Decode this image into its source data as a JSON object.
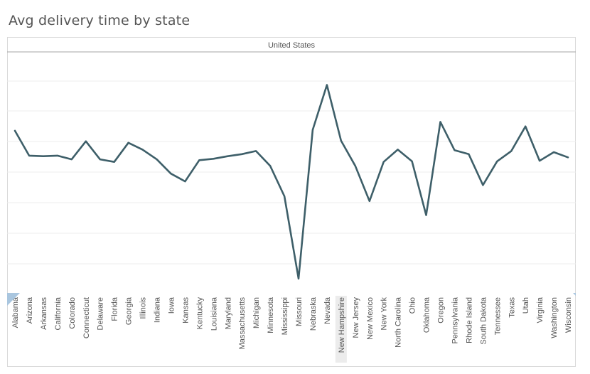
{
  "page": {
    "title": "Avg delivery time by state"
  },
  "chart_data": {
    "type": "line",
    "title": "Avg delivery time by state",
    "header": "United States",
    "xlabel": "",
    "ylabel": "",
    "grid": true,
    "y_axis_visible": false,
    "highlighted_category": "New Hampshire",
    "line_color": "#3e5f69",
    "categories": [
      "Alabama",
      "Arizona",
      "Arkansas",
      "California",
      "Colorado",
      "Connecticut",
      "Delaware",
      "Florida",
      "Georgia",
      "Illinois",
      "Indiana",
      "Iowa",
      "Kansas",
      "Kentucky",
      "Louisiana",
      "Maryland",
      "Massachusetts",
      "Michigan",
      "Minnesota",
      "Mississippi",
      "Missouri",
      "Nebraska",
      "Nevada",
      "New Hampshire",
      "New Jersey",
      "New Mexico",
      "New York",
      "North Carolina",
      "Ohio",
      "Oklahoma",
      "Oregon",
      "Pennsylvania",
      "Rhode Island",
      "South Dakota",
      "Tennessee",
      "Texas",
      "Utah",
      "Virginia",
      "Washington",
      "Wisconsin"
    ],
    "series": [
      {
        "values": [
          4.87,
          4.0,
          3.98,
          4.0,
          3.87,
          4.5,
          3.87,
          3.78,
          4.45,
          4.21,
          3.87,
          3.37,
          3.1,
          3.84,
          3.89,
          3.98,
          4.05,
          4.16,
          3.64,
          2.58,
          -0.3,
          4.9,
          6.47,
          4.52,
          3.64,
          2.41,
          3.78,
          4.21,
          3.8,
          1.92,
          5.18,
          4.19,
          4.05,
          2.97,
          3.8,
          4.16,
          5.02,
          3.82,
          4.12,
          3.94
        ]
      }
    ],
    "ylim": [
      -0.8,
      7.6
    ]
  }
}
